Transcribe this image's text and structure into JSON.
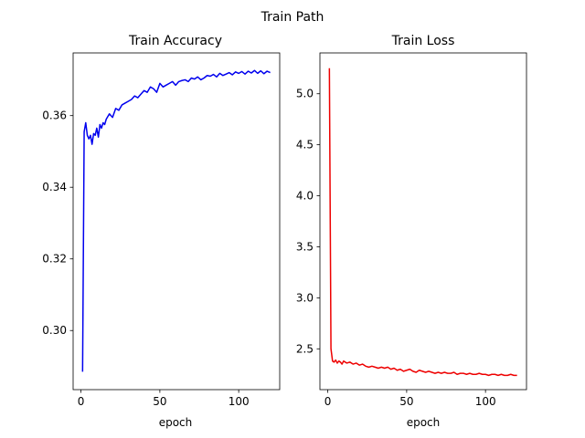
{
  "figure": {
    "title": "Train Path"
  },
  "chart_data": [
    {
      "type": "line",
      "title": "Train Accuracy",
      "xlabel": "epoch",
      "ylabel": "",
      "xlim": [
        -5,
        126
      ],
      "ylim": [
        0.2835,
        0.3775
      ],
      "xticks": [
        0,
        50,
        100
      ],
      "yticks": [
        0.3,
        0.32,
        0.34,
        0.36
      ],
      "ytick_labels": [
        "0.30",
        "0.32",
        "0.34",
        "0.36"
      ],
      "grid": false,
      "series": [
        {
          "color": "#0000ee",
          "x": [
            1,
            2,
            3,
            4,
            5,
            6,
            7,
            8,
            9,
            10,
            11,
            12,
            13,
            14,
            15,
            16,
            18,
            20,
            22,
            24,
            26,
            28,
            30,
            32,
            34,
            36,
            38,
            40,
            42,
            44,
            46,
            48,
            50,
            52,
            54,
            56,
            58,
            60,
            62,
            64,
            66,
            68,
            70,
            72,
            74,
            76,
            78,
            80,
            82,
            84,
            86,
            88,
            90,
            92,
            94,
            96,
            98,
            100,
            102,
            104,
            106,
            108,
            110,
            112,
            114,
            116,
            118,
            120
          ],
          "y": [
            0.2885,
            0.3555,
            0.358,
            0.3545,
            0.3535,
            0.3545,
            0.352,
            0.355,
            0.3545,
            0.3565,
            0.354,
            0.3575,
            0.3565,
            0.358,
            0.3575,
            0.359,
            0.3605,
            0.3595,
            0.362,
            0.3615,
            0.363,
            0.3635,
            0.364,
            0.3645,
            0.3655,
            0.365,
            0.366,
            0.367,
            0.3665,
            0.368,
            0.3675,
            0.3665,
            0.369,
            0.368,
            0.3685,
            0.369,
            0.3695,
            0.3685,
            0.3695,
            0.3698,
            0.37,
            0.3695,
            0.3705,
            0.3702,
            0.3708,
            0.37,
            0.3705,
            0.3712,
            0.371,
            0.3715,
            0.3708,
            0.3718,
            0.3712,
            0.3716,
            0.372,
            0.3714,
            0.3722,
            0.3718,
            0.3723,
            0.3716,
            0.3724,
            0.3719,
            0.3726,
            0.3718,
            0.3725,
            0.3717,
            0.3724,
            0.372
          ]
        }
      ]
    },
    {
      "type": "line",
      "title": "Train Loss",
      "xlabel": "epoch",
      "ylabel": "",
      "xlim": [
        -5,
        126
      ],
      "ylim": [
        2.1,
        5.4
      ],
      "xticks": [
        0,
        50,
        100
      ],
      "yticks": [
        2.5,
        3.0,
        3.5,
        4.0,
        4.5,
        5.0
      ],
      "ytick_labels": [
        "2.5",
        "3.0",
        "3.5",
        "4.0",
        "4.5",
        "5.0"
      ],
      "grid": false,
      "series": [
        {
          "color": "#ee0000",
          "x": [
            1,
            2,
            3,
            4,
            5,
            6,
            7,
            8,
            9,
            10,
            12,
            14,
            16,
            18,
            20,
            22,
            24,
            26,
            28,
            30,
            32,
            34,
            36,
            38,
            40,
            42,
            44,
            46,
            48,
            50,
            52,
            54,
            56,
            58,
            60,
            62,
            64,
            66,
            68,
            70,
            72,
            74,
            76,
            78,
            80,
            82,
            84,
            86,
            88,
            90,
            92,
            94,
            96,
            98,
            100,
            102,
            104,
            106,
            108,
            110,
            112,
            114,
            116,
            118,
            120
          ],
          "y": [
            5.25,
            2.5,
            2.38,
            2.37,
            2.39,
            2.36,
            2.38,
            2.37,
            2.35,
            2.38,
            2.36,
            2.37,
            2.35,
            2.36,
            2.34,
            2.35,
            2.33,
            2.32,
            2.33,
            2.32,
            2.31,
            2.32,
            2.31,
            2.32,
            2.3,
            2.31,
            2.29,
            2.3,
            2.28,
            2.29,
            2.3,
            2.28,
            2.27,
            2.29,
            2.28,
            2.27,
            2.28,
            2.27,
            2.26,
            2.27,
            2.26,
            2.27,
            2.26,
            2.26,
            2.27,
            2.25,
            2.26,
            2.26,
            2.25,
            2.26,
            2.25,
            2.25,
            2.26,
            2.25,
            2.25,
            2.24,
            2.25,
            2.25,
            2.24,
            2.25,
            2.24,
            2.24,
            2.25,
            2.24,
            2.24
          ]
        }
      ]
    }
  ]
}
